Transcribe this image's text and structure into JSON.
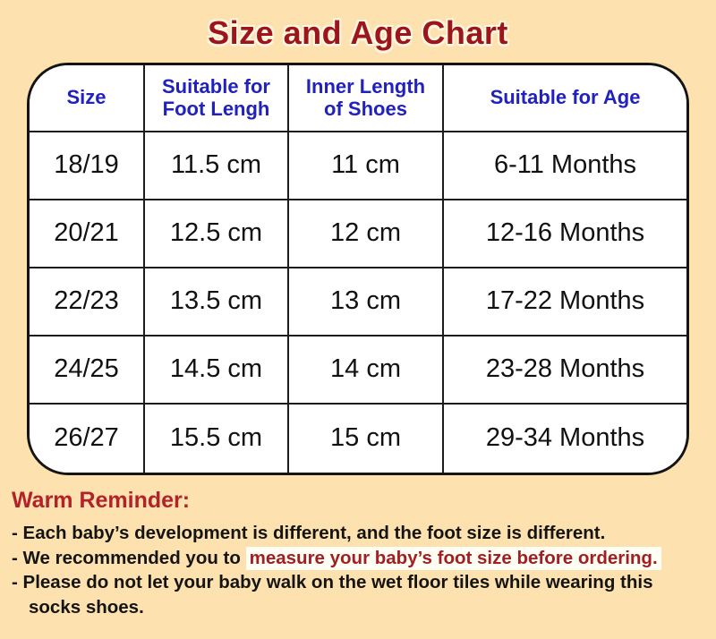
{
  "page": {
    "background_color": "#FDE1AE",
    "title_color": "#9C151B",
    "header_text_color": "#2121BE",
    "reminder_heading_color": "#B2222A",
    "highlight_bg_color": "#FFFEF4",
    "highlight_text_color": "#A21E22"
  },
  "chart_data": {
    "type": "table",
    "title": "Size and Age Chart",
    "columns": [
      "Size",
      "Suitable for Foot Lengh",
      "Inner Length of Shoes",
      "Suitable for Age"
    ],
    "rows": [
      [
        "18/19",
        "11.5 cm",
        "11 cm",
        "6-11 Months"
      ],
      [
        "20/21",
        "12.5 cm",
        "12 cm",
        "12-16 Months"
      ],
      [
        "22/23",
        "13.5 cm",
        "13 cm",
        "17-22 Months"
      ],
      [
        "24/25",
        "14.5 cm",
        "14 cm",
        "23-28 Months"
      ],
      [
        "26/27",
        "15.5 cm",
        "15 cm",
        "29-34 Months"
      ]
    ]
  },
  "reminder": {
    "heading": "Warm Reminder:",
    "line1": "- Each baby’s development is different, and the foot size is different.",
    "line2_prefix": "- We recommended you to ",
    "line2_highlight": "measure your baby’s foot size before ordering.",
    "line3": "- Please do not let your baby walk on the wet floor tiles while wearing this",
    "line4": "socks shoes."
  }
}
